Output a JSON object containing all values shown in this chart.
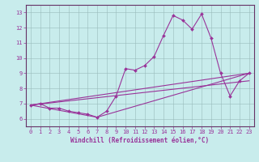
{
  "xlabel": "Windchill (Refroidissement éolien,°C)",
  "xlim": [
    -0.5,
    23.5
  ],
  "ylim": [
    5.5,
    13.5
  ],
  "xticks": [
    0,
    1,
    2,
    3,
    4,
    5,
    6,
    7,
    8,
    9,
    10,
    11,
    12,
    13,
    14,
    15,
    16,
    17,
    18,
    19,
    20,
    21,
    22,
    23
  ],
  "yticks": [
    6,
    7,
    8,
    9,
    10,
    11,
    12,
    13
  ],
  "background_color": "#c8ecec",
  "line_color": "#993399",
  "grid_color": "#99bbbb",
  "border_color": "#663366",
  "lines": [
    {
      "x": [
        0,
        1,
        2,
        3,
        4,
        5,
        6,
        7,
        8,
        9,
        10,
        11,
        12,
        13,
        14,
        15,
        16,
        17,
        18,
        19,
        20,
        21,
        22,
        23
      ],
      "y": [
        6.9,
        7.0,
        6.7,
        6.7,
        6.5,
        6.4,
        6.3,
        6.1,
        6.5,
        7.5,
        9.3,
        9.2,
        9.5,
        10.1,
        11.5,
        12.8,
        12.5,
        11.9,
        12.9,
        11.3,
        9.0,
        7.5,
        8.5,
        9.0
      ],
      "marker": "D",
      "markersize": 2.0,
      "linewidth": 0.8
    },
    {
      "x": [
        0,
        23
      ],
      "y": [
        6.9,
        9.0
      ],
      "marker": null,
      "markersize": 0,
      "linewidth": 0.8
    },
    {
      "x": [
        0,
        7,
        23
      ],
      "y": [
        6.9,
        6.1,
        9.0
      ],
      "marker": null,
      "markersize": 0,
      "linewidth": 0.8
    },
    {
      "x": [
        0,
        23
      ],
      "y": [
        6.9,
        8.5
      ],
      "marker": null,
      "markersize": 0,
      "linewidth": 0.8
    }
  ],
  "xlabel_fontsize": 5.5,
  "tick_fontsize": 5.0,
  "tick_labelsize": 5.0
}
